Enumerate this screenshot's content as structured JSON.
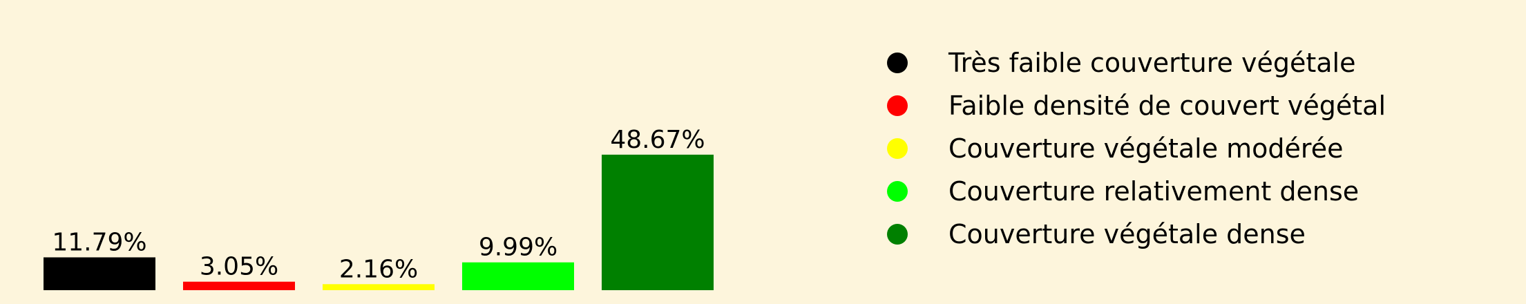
{
  "chart_data": {
    "type": "bar",
    "categories": [
      "Très faible couverture végétale",
      "Faible densité de couvert végétal",
      "Couverture végétale modérée",
      "Couverture relativement dense",
      "Couverture végétale dense"
    ],
    "values": [
      11.79,
      3.05,
      2.16,
      9.99,
      48.67
    ],
    "value_labels": [
      "11.79%",
      "3.05%",
      "2.16%",
      "9.99%",
      "48.67%"
    ],
    "colors": [
      "#000000",
      "#ff0000",
      "#ffff00",
      "#00ff00",
      "#008000"
    ],
    "ylim": [
      0,
      50
    ],
    "grid": false,
    "legend_position": "right",
    "background": "#fdf5dc",
    "xlabel": "",
    "ylabel": "",
    "title": ""
  }
}
